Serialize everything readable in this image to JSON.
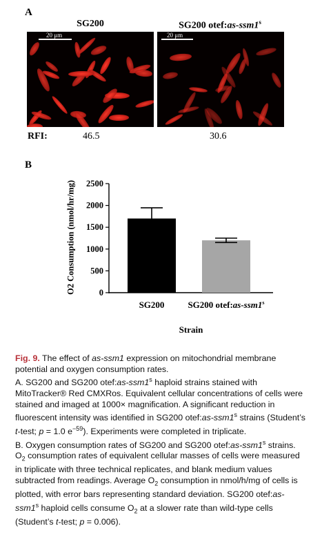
{
  "panel_a": {
    "letter": "A",
    "left_title": "SG200",
    "right_title_main": "SG200 otef:",
    "right_title_italic": "as-ssm1",
    "right_title_sup": "s",
    "scale_bar_label": "20 μm",
    "rfi_label": "RFI:",
    "rfi_left": "46.5",
    "rfi_right": "30.6",
    "cell_color": "#e02a1f",
    "background_color": "#050000"
  },
  "panel_b": {
    "letter": "B"
  },
  "chart_data": {
    "type": "bar",
    "categories": [
      "SG200",
      "SG200 otef:as-ssm1s"
    ],
    "category_labels": [
      {
        "main": "SG200",
        "italic": "",
        "sup": ""
      },
      {
        "main": "SG200 otef:",
        "italic": "as-ssm1",
        "sup": "s"
      }
    ],
    "values": [
      1700,
      1200
    ],
    "errors": [
      245,
      50
    ],
    "bar_colors": [
      "#000000",
      "#a6a6a6"
    ],
    "xlabel": "Strain",
    "ylabel": "O2 Consumption (nmol/hr/mg)",
    "ylim": [
      0,
      2500
    ],
    "yticks": [
      "0",
      "500",
      "1000",
      "1500",
      "2000",
      "2500"
    ],
    "ytick_values": [
      0,
      500,
      1000,
      1500,
      2000,
      2500
    ],
    "grid": false
  },
  "caption": {
    "fig_label": "Fig. 9.",
    "title_pre": "The effect of ",
    "title_italic": "as-ssm1",
    "title_post": " expression on mitochondrial membrane potential and oxygen consumption rates.",
    "a_1": "A. SG200 and SG200 otef:",
    "a_italic1": "as-ssm1",
    "a_sup1": "s",
    "a_2": " haploid strains stained with MitoTracker® Red CMXRos. Equivalent cellular concentrations of cells were stained and imaged at 1000× magnification. A significant reduction in fluorescent intensity was identified in SG200 otef:",
    "a_italic2": "as-ssm1",
    "a_sup2": "s",
    "a_3": " strains (Student’s ",
    "a_italic3": "t",
    "a_4": "-test; ",
    "a_italic4": "p",
    "a_5": " = 1.0 e",
    "a_sup3": "−59",
    "a_6": "). Experiments were completed in triplicate.",
    "b_1": "B. Oxygen consumption rates of SG200 and SG200 otef:",
    "b_italic1": "as-ssm1",
    "b_sup1": "s",
    "b_2": " strains. O",
    "b_sub1": "2",
    "b_3": " consumption rates of equivalent cellular masses of cells were measured in triplicate with three technical replicates, and blank medium values subtracted from readings. Average O",
    "b_sub2": "2",
    "b_4": " consumption in nmol/h/mg of cells is plotted, with error bars representing standard deviation. SG200 otef:",
    "b_italic2": "as-ssm1",
    "b_sup2": "s",
    "b_5": " haploid cells consume O",
    "b_sub3": "2",
    "b_6": " at a slower rate than wild-type cells (Student’s ",
    "b_italic3": "t",
    "b_7": "-test; ",
    "b_italic4": "p",
    "b_8": " = 0.006)."
  }
}
